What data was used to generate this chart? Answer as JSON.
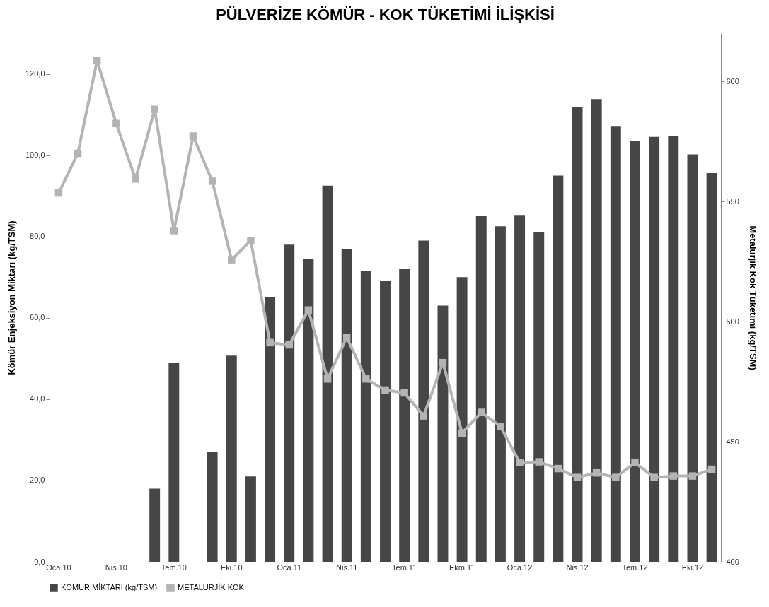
{
  "chart_data": {
    "type": "bar",
    "title": "PÜLVERİZE KÖMÜR -  KOK TÜKETİMİ İLİŞKİSİ",
    "ylabel": "Kömür Enjeksiyon Miktarı (kg/TSM)",
    "y2label": "Metalurjik Kok Tüketimi (kg/TSM)",
    "categories": [
      "Oca.10",
      null,
      null,
      "Nis.10",
      null,
      null,
      "Tem.10",
      null,
      null,
      "Eki.10",
      null,
      null,
      "Oca.11",
      null,
      null,
      "Nis.11",
      null,
      null,
      "Tem.11",
      null,
      null,
      "Ekm.11",
      null,
      null,
      "Oca.12",
      null,
      null,
      "Nis.12",
      null,
      null,
      "Tem.12",
      null,
      null,
      "Eki.12",
      null
    ],
    "series": [
      {
        "name": "KÖMÜR MİKTARI (kg/TSM)",
        "color": "#464646",
        "values": [
          null,
          null,
          null,
          null,
          null,
          18,
          49,
          null,
          27,
          50.7,
          21,
          65,
          78,
          74.5,
          92.5,
          77,
          71.5,
          69,
          72,
          79,
          63,
          70,
          85,
          82.5,
          85.3,
          81,
          95,
          111.8,
          113.8,
          107,
          103.5,
          104.5,
          104.7,
          100.2,
          95.6
        ]
      },
      {
        "name": "METALURJİK KOK",
        "type": "line",
        "axis": "y2",
        "color": "#b4b4b4",
        "values": [
          553.5,
          570,
          608.6,
          582.4,
          559.3,
          588.3,
          537.8,
          577.2,
          558.4,
          525.7,
          533.7,
          491.2,
          490.3,
          504.8,
          476.1,
          493.4,
          476.1,
          471.5,
          470.3,
          460.7,
          482.9,
          453.6,
          462.2,
          456.4,
          441.3,
          441.6,
          438.8,
          435.1,
          437,
          435.1,
          441.3,
          435.1,
          435.7,
          435.7,
          438.5
        ]
      }
    ],
    "ylim": [
      0,
      130
    ],
    "yticks": [
      {
        "value": 0,
        "label": "0,0"
      },
      {
        "value": 20,
        "label": "20,0"
      },
      {
        "value": 40,
        "label": "40,0"
      },
      {
        "value": 60,
        "label": "60,0"
      },
      {
        "value": 80,
        "label": "80,0"
      },
      {
        "value": 100,
        "label": "100,0"
      },
      {
        "value": 120,
        "label": "120,0"
      }
    ],
    "y2lim": [
      400,
      620
    ],
    "y2ticks": [
      400,
      450,
      500,
      550,
      600
    ],
    "marker": "square",
    "line_style": "solid",
    "grid": false,
    "legend": "bottom"
  }
}
